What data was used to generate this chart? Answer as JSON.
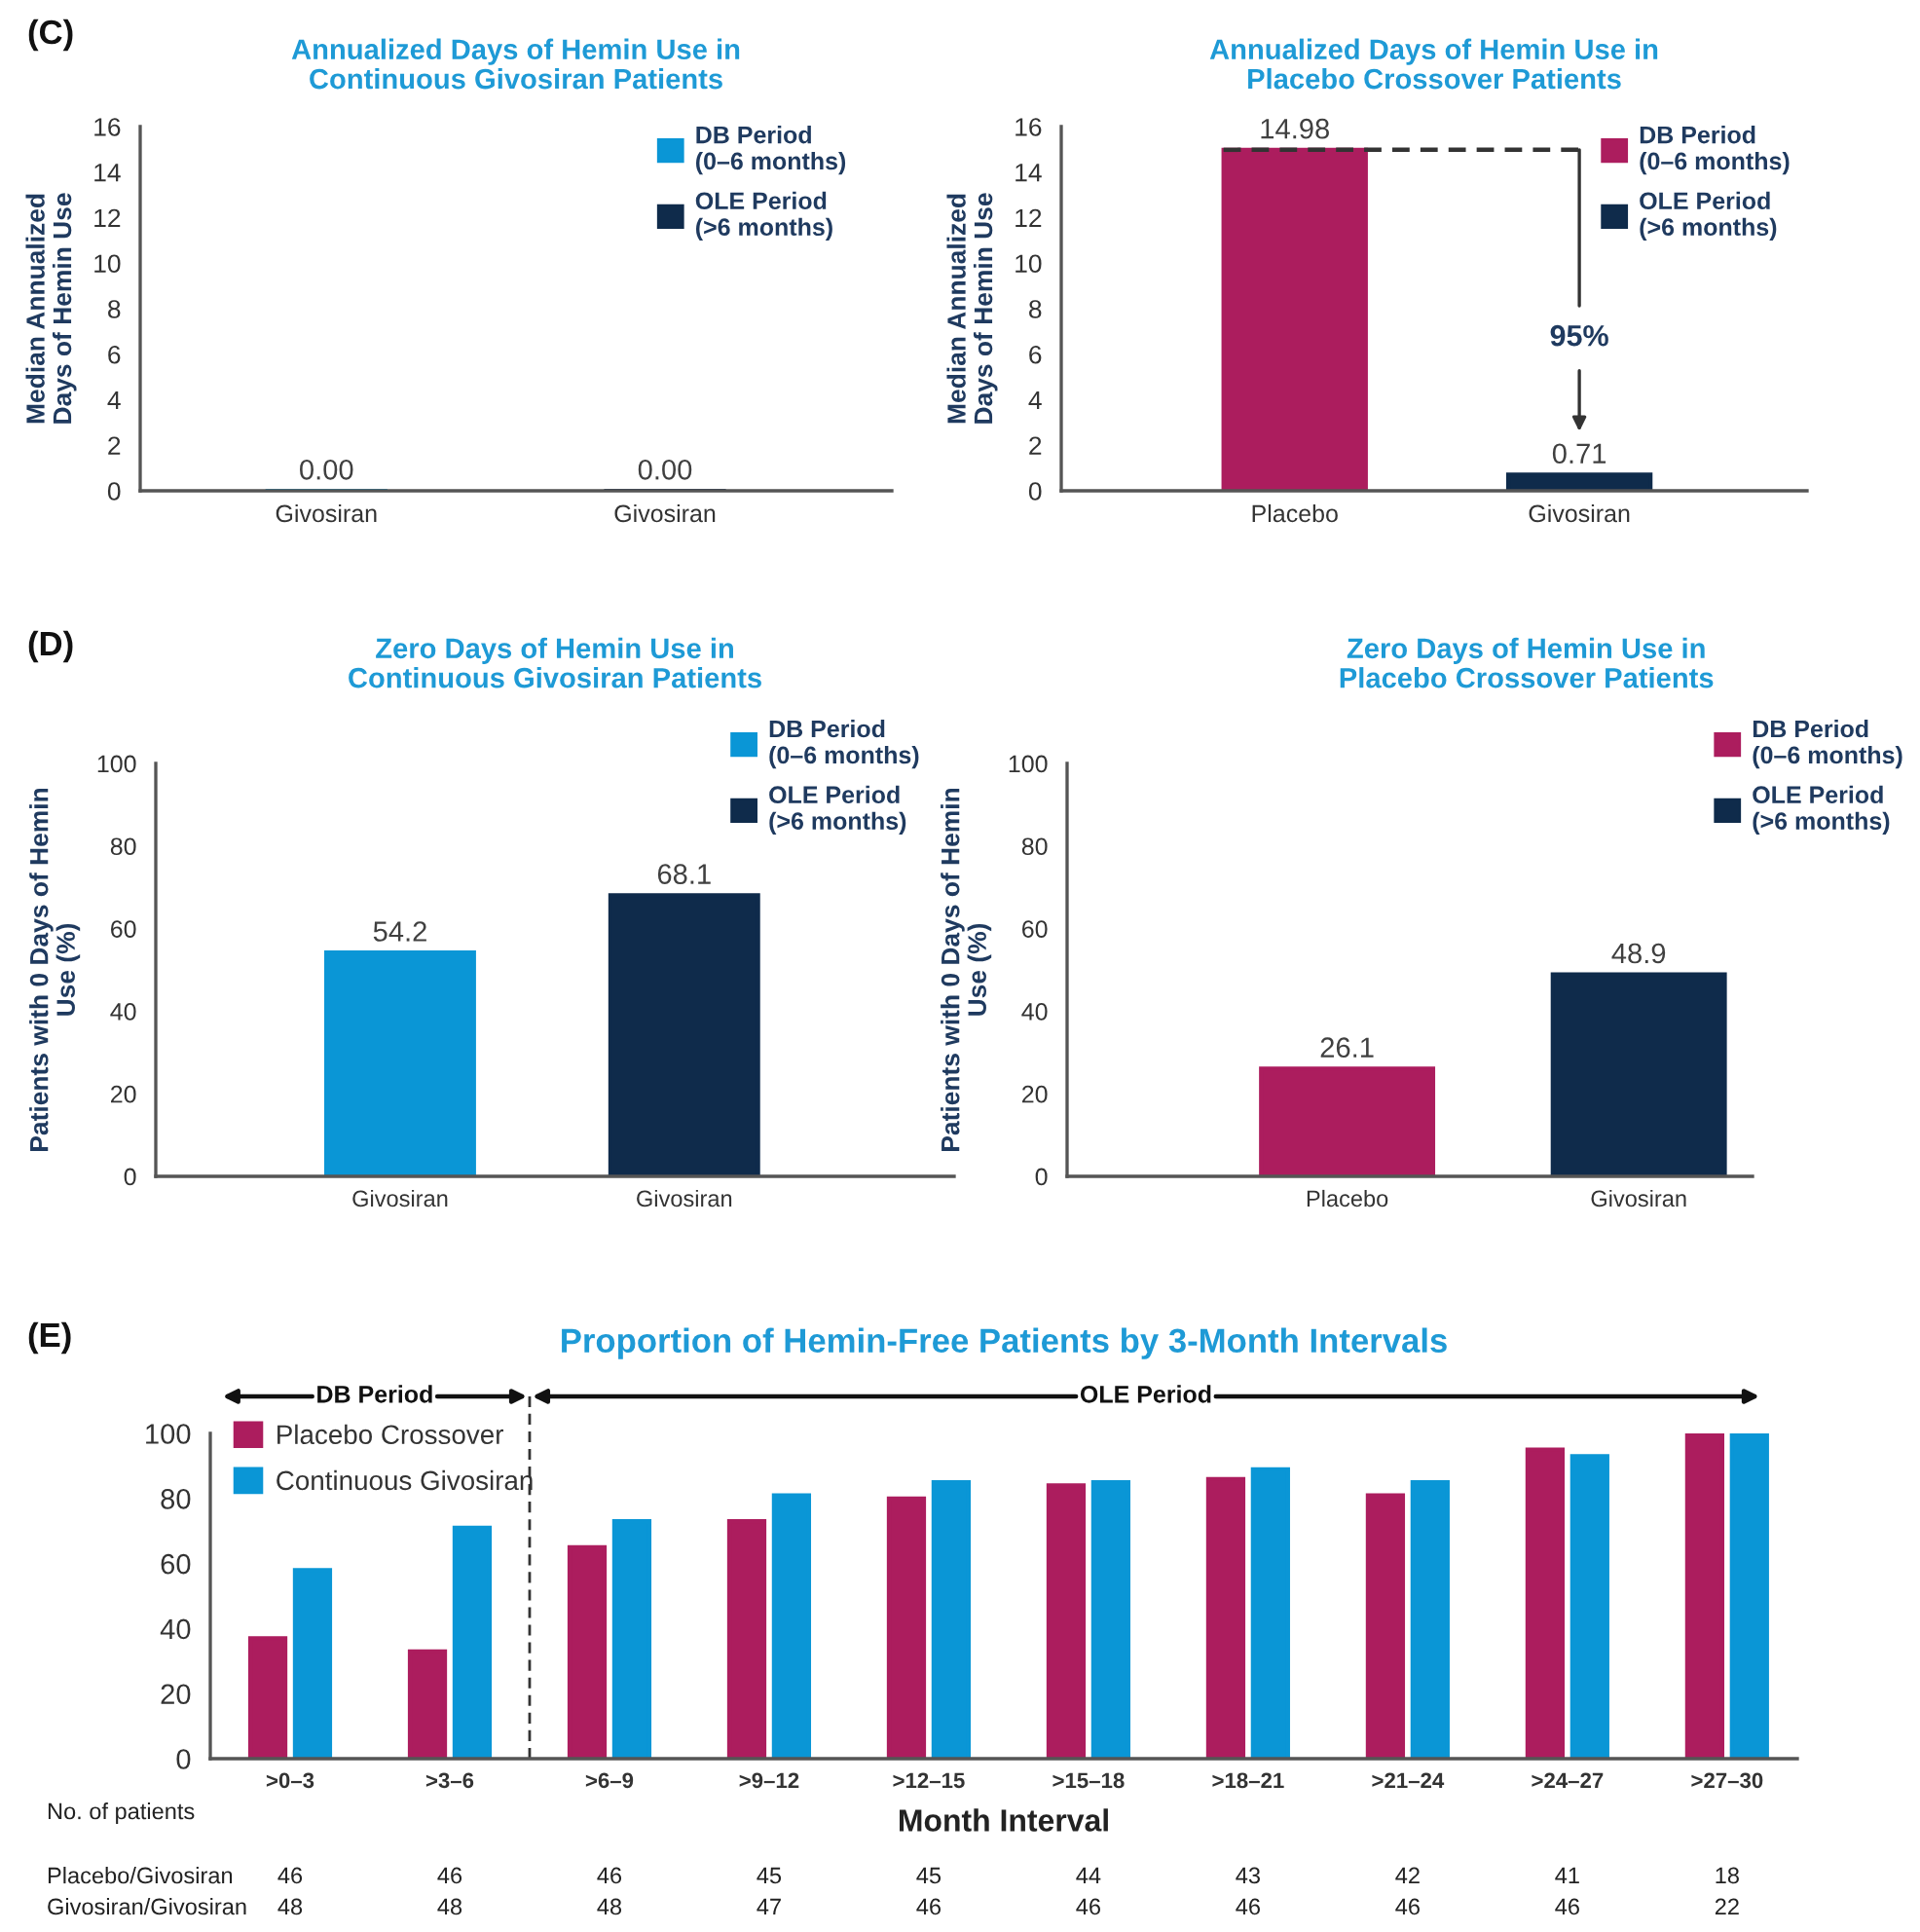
{
  "chart_data": [
    {
      "type": "bar",
      "title": "Annualized Days of Hemin Use in\nContinuous Givosiran Patients",
      "ylabel": "Median Annualized\nDays of Hemin Use",
      "categories": [
        "Givosiran",
        "Givosiran"
      ],
      "series": [
        {
          "name": "DB Period\n(0–6 months)",
          "color": "#0a96d6",
          "values": [
            0,
            null
          ],
          "value_labels": [
            "0.00",
            null
          ]
        },
        {
          "name": "OLE Period\n(>6 months)",
          "color": "#0f2b4b",
          "values": [
            null,
            0
          ],
          "value_labels": [
            null,
            "0.00"
          ]
        }
      ],
      "ylim": [
        0,
        16
      ],
      "yticks": [
        0,
        2,
        4,
        6,
        8,
        10,
        12,
        14,
        16
      ],
      "legend": "top right",
      "annotations": [
        "(C)"
      ]
    },
    {
      "type": "bar",
      "title": "Annualized Days of Hemin Use in\nPlacebo Crossover Patients",
      "ylabel": "Median Annualized\nDays of Hemin Use",
      "categories": [
        "Placebo",
        "Givosiran"
      ],
      "series": [
        {
          "name": "DB Period\n(0–6 months)",
          "color": "#ac1d5e",
          "values": [
            14.98,
            null
          ]
        },
        {
          "name": "OLE Period\n(>6 months)",
          "color": "#0f2b4b",
          "values": [
            null,
            0.71
          ]
        }
      ],
      "ylim": [
        0,
        16
      ],
      "yticks": [
        0,
        2,
        4,
        6,
        8,
        10,
        12,
        14,
        16
      ],
      "data_labels": true,
      "legend": "top right",
      "ref_lines": [
        {
          "axis": "y",
          "value": 14.98,
          "line_style": "dashed"
        }
      ],
      "annotations": [
        {
          "text": "95%",
          "x": "Givosiran",
          "y": 14.98
        }
      ]
    },
    {
      "type": "bar",
      "title": "Zero Days of Hemin Use in\nContinuous Givosiran Patients",
      "ylabel": "Patients with 0 Days of Hemin\nUse (%)",
      "categories": [
        "Givosiran",
        "Givosiran"
      ],
      "series": [
        {
          "name": "DB Period\n(0–6 months)",
          "color": "#0a96d6",
          "values": [
            54.2,
            null
          ]
        },
        {
          "name": "OLE Period\n(>6 months)",
          "color": "#0f2b4b",
          "values": [
            null,
            68.1
          ]
        }
      ],
      "ylim": [
        0,
        100
      ],
      "yticks": [
        0,
        20,
        40,
        60,
        80,
        100
      ],
      "data_labels": true,
      "legend": "top right",
      "annotations": [
        "(D)"
      ]
    },
    {
      "type": "bar",
      "title": "Zero Days of Hemin Use in\nPlacebo Crossover Patients",
      "ylabel": "Patients with 0 Days of Hemin\nUse (%)",
      "categories": [
        "Placebo",
        "Givosiran"
      ],
      "series": [
        {
          "name": "DB Period\n(0–6 months)",
          "color": "#ac1d5e",
          "values": [
            26.1,
            null
          ]
        },
        {
          "name": "OLE Period\n(>6 months)",
          "color": "#0f2b4b",
          "values": [
            null,
            48.9
          ]
        }
      ],
      "ylim": [
        0,
        100
      ],
      "yticks": [
        0,
        20,
        40,
        60,
        80,
        100
      ],
      "data_labels": true,
      "legend": "top right"
    },
    {
      "type": "bar",
      "title": "Proportion of Hemin-Free Patients by 3-Month Intervals",
      "xlabel": "Month Interval",
      "categories": [
        ">0–3",
        ">3–6",
        ">6–9",
        ">9–12",
        ">12–15",
        ">15–18",
        ">18–21",
        ">21–24",
        ">24–27",
        ">27–30"
      ],
      "series": [
        {
          "name": "Placebo Crossover",
          "color": "#ac1d5e",
          "values": [
            37,
            33,
            65,
            73,
            80,
            84,
            86,
            81,
            95,
            100
          ]
        },
        {
          "name": "Continuous Givosiran",
          "color": "#0a96d6",
          "values": [
            58,
            71,
            73,
            81,
            85,
            85,
            89,
            85,
            93,
            100
          ]
        }
      ],
      "ylim": [
        0,
        100
      ],
      "yticks": [
        0,
        20,
        40,
        60,
        80,
        100
      ],
      "legend": "top left",
      "annotations": [
        "(E)",
        "DB Period",
        "OLE Period",
        "No. of patients",
        "Placebo/Givosiran",
        "46",
        "46",
        "46",
        "45",
        "45",
        "44",
        "43",
        "42",
        "41",
        "18",
        "Givosiran/Givosiran",
        "48",
        "48",
        "48",
        "47",
        "46",
        "46",
        "46",
        "46",
        "46",
        "22"
      ]
    }
  ]
}
